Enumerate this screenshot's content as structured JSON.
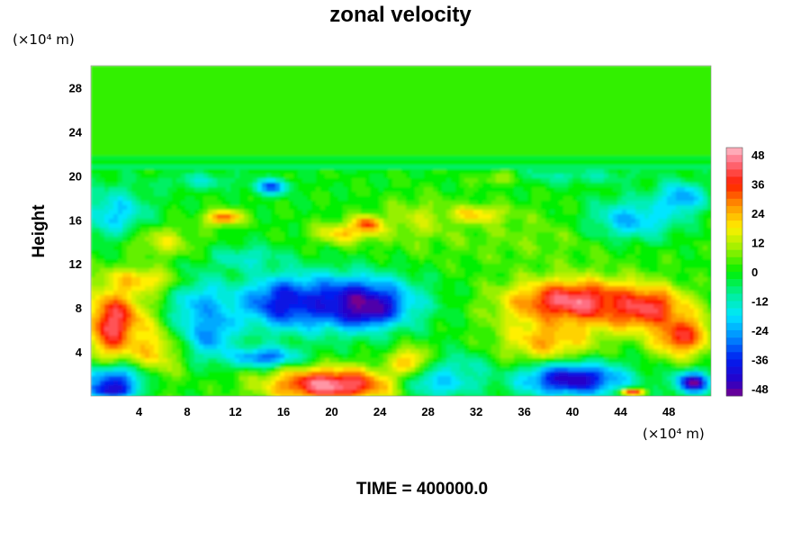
{
  "chart_data": {
    "type": "heatmap",
    "title": "zonal velocity",
    "ylabel": "Height",
    "xlabel": "",
    "y_unit_label": "(×10⁴ m)",
    "x_unit_label": "(×10⁴ m)",
    "footer": "TIME = 400000.0",
    "xlim": [
      0,
      51.5
    ],
    "ylim": [
      0,
      30
    ],
    "x_ticks": [
      "4",
      "8",
      "12",
      "16",
      "20",
      "24",
      "28",
      "32",
      "36",
      "40",
      "44",
      "48"
    ],
    "y_ticks": [
      "4",
      "8",
      "12",
      "16",
      "20",
      "24",
      "28"
    ],
    "colorbar": {
      "range": [
        -51,
        51
      ],
      "ticks": [
        "48",
        "36",
        "24",
        "12",
        "0",
        "-12",
        "-24",
        "-36",
        "-48"
      ]
    },
    "background_value": 0,
    "features": [
      {
        "x": 2,
        "y": 6.5,
        "v": 44,
        "rx": 2.5,
        "ry": 3.5
      },
      {
        "x": 5,
        "y": 4,
        "v": 22,
        "rx": 2.5,
        "ry": 3
      },
      {
        "x": 2,
        "y": 1.5,
        "v": -30,
        "rx": 3,
        "ry": 1.5
      },
      {
        "x": 1.5,
        "y": 0.5,
        "v": -44,
        "rx": 2,
        "ry": 0.8
      },
      {
        "x": 10,
        "y": 6,
        "v": -30,
        "rx": 2,
        "ry": 2.5
      },
      {
        "x": 9,
        "y": 8,
        "v": -22,
        "rx": 2.5,
        "ry": 3
      },
      {
        "x": 16,
        "y": 8.5,
        "v": -38,
        "rx": 4,
        "ry": 2.5
      },
      {
        "x": 22,
        "y": 8.5,
        "v": -46,
        "rx": 5,
        "ry": 2.5
      },
      {
        "x": 23,
        "y": 8,
        "v": -50,
        "rx": 2,
        "ry": 1.3
      },
      {
        "x": 14.5,
        "y": 3.5,
        "v": -32,
        "rx": 3,
        "ry": 1
      },
      {
        "x": 20,
        "y": 1,
        "v": 48,
        "rx": 5.5,
        "ry": 1.6
      },
      {
        "x": 26.5,
        "y": 3,
        "v": 28,
        "rx": 1.5,
        "ry": 1.5
      },
      {
        "x": 29,
        "y": 1.2,
        "v": -22,
        "rx": 3,
        "ry": 1.5
      },
      {
        "x": 31,
        "y": 2.5,
        "v": -14,
        "rx": 2,
        "ry": 1.5
      },
      {
        "x": 40,
        "y": 8.5,
        "v": 48,
        "rx": 5.5,
        "ry": 2.3
      },
      {
        "x": 46,
        "y": 8,
        "v": 42,
        "rx": 3.5,
        "ry": 2
      },
      {
        "x": 49,
        "y": 5.5,
        "v": 38,
        "rx": 2.5,
        "ry": 2
      },
      {
        "x": 38,
        "y": 5,
        "v": 25,
        "rx": 4,
        "ry": 2.5
      },
      {
        "x": 40,
        "y": 1.5,
        "v": -46,
        "rx": 4.5,
        "ry": 1.6
      },
      {
        "x": 50,
        "y": 1.2,
        "v": -50,
        "rx": 1.5,
        "ry": 1
      },
      {
        "x": 45,
        "y": 0.3,
        "v": 40,
        "rx": 1,
        "ry": 0.4
      },
      {
        "x": 37,
        "y": 14.5,
        "v": 6,
        "rx": 12,
        "ry": 3
      },
      {
        "x": 45,
        "y": 16,
        "v": -22,
        "rx": 4,
        "ry": 2
      },
      {
        "x": 49,
        "y": 18,
        "v": -26,
        "rx": 2,
        "ry": 1.5
      },
      {
        "x": 2,
        "y": 16.5,
        "v": -20,
        "rx": 3,
        "ry": 2.5
      },
      {
        "x": 15,
        "y": 19,
        "v": -32,
        "rx": 1.5,
        "ry": 0.7
      },
      {
        "x": 11,
        "y": 16.2,
        "v": 34,
        "rx": 1.5,
        "ry": 0.7
      },
      {
        "x": 23,
        "y": 15.5,
        "v": 46,
        "rx": 1.2,
        "ry": 0.8
      },
      {
        "x": 21,
        "y": 14.8,
        "v": 22,
        "rx": 2.5,
        "ry": 1
      },
      {
        "x": 32,
        "y": 16.5,
        "v": 22,
        "rx": 2.5,
        "ry": 0.8
      },
      {
        "x": 34,
        "y": 19.8,
        "v": 18,
        "rx": 2,
        "ry": 0.6
      },
      {
        "x": 6,
        "y": 14,
        "v": 14,
        "rx": 3,
        "ry": 1.5
      },
      {
        "x": 27,
        "y": 16,
        "v": 12,
        "rx": 3,
        "ry": 2
      },
      {
        "x": 4,
        "y": 10.5,
        "v": 22,
        "rx": 3,
        "ry": 1.2
      },
      {
        "x": 13,
        "y": 12.5,
        "v": -14,
        "rx": 3,
        "ry": 1.2
      },
      {
        "x": 40,
        "y": 20,
        "v": -10,
        "rx": 6,
        "ry": 0.8
      },
      {
        "x": 9,
        "y": 19.5,
        "v": -12,
        "rx": 3,
        "ry": 0.8
      }
    ]
  }
}
